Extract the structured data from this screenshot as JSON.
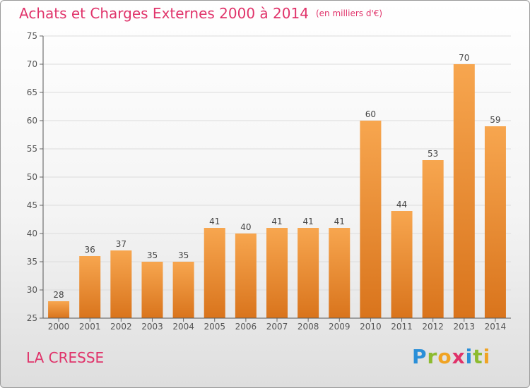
{
  "header": {
    "title": "Achats et Charges Externes 2000 à 2014",
    "subtitle": "(en milliers d'€)"
  },
  "footer": {
    "place": "LA CRESSE",
    "logo": {
      "P": "P",
      "r": "r",
      "o": "o",
      "x": "x",
      "i1": "i",
      "t": "t",
      "i2": "i"
    }
  },
  "colors": {
    "bar_light": "#f7a64f",
    "bar_dark": "#d9741c",
    "title": "#e0336a",
    "grid": "#dcdcdc"
  },
  "chart_data": {
    "type": "bar",
    "title": "Achats et Charges Externes 2000 à 2014",
    "subtitle": "(en milliers d'€)",
    "categories": [
      "2000",
      "2001",
      "2002",
      "2003",
      "2004",
      "2005",
      "2006",
      "2007",
      "2008",
      "2009",
      "2010",
      "2011",
      "2012",
      "2013",
      "2014"
    ],
    "values": [
      28,
      36,
      37,
      35,
      35,
      41,
      40,
      41,
      41,
      41,
      60,
      44,
      53,
      70,
      59
    ],
    "ylim": [
      25,
      75
    ],
    "yticks": [
      25,
      30,
      35,
      40,
      45,
      50,
      55,
      60,
      65,
      70,
      75
    ],
    "grid": true,
    "legend": "none"
  }
}
